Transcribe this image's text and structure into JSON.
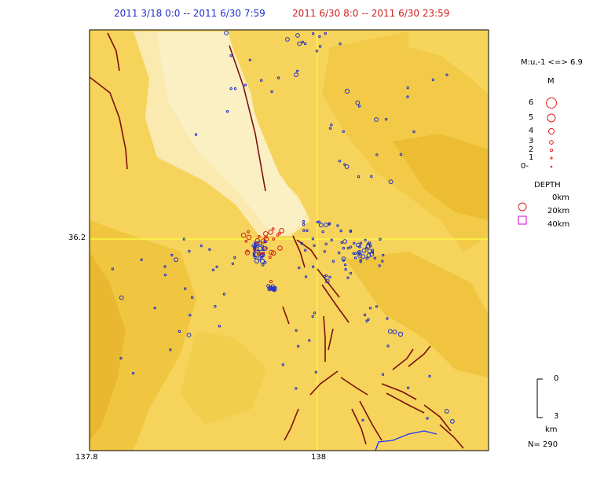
{
  "header": {
    "period_blue": "2011 3/18 0:0 -- 2011 6/30 7:59",
    "period_red": "2011 6/30 8:0 -- 2011 6/30 23:59"
  },
  "axes": {
    "lon_left": "137.8",
    "lon_mid": "138",
    "lat_mid": "36.2"
  },
  "legend": {
    "magnitude_range": "M:u,-1 <=> 6.9",
    "m_title": "M",
    "m_levels": [
      "6",
      "5",
      "4",
      "3",
      "2",
      "1",
      "0-"
    ],
    "depth_title": "DEPTH",
    "depth_levels": [
      "0km",
      "20km",
      "40km"
    ],
    "scale_top": "0",
    "scale_bottom": "3",
    "scale_unit": "km",
    "count": "N= 290"
  },
  "colors": {
    "blue_period": "#2030c8",
    "red_period": "#d02020",
    "fault": "#7a1010",
    "grid": "#ffff40"
  }
}
